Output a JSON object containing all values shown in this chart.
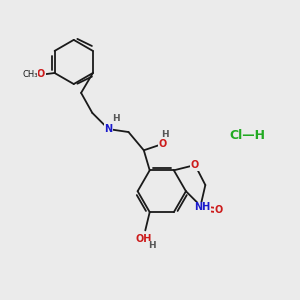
{
  "bg_color": "#ebebeb",
  "bond_color": "#1a1a1a",
  "N_color": "#1a1acc",
  "O_color": "#cc1a1a",
  "HCl_color": "#22aa22",
  "gray_color": "#555555",
  "figsize": [
    3.0,
    3.0
  ],
  "dpi": 100,
  "xlim": [
    0,
    10
  ],
  "ylim": [
    0,
    10
  ]
}
